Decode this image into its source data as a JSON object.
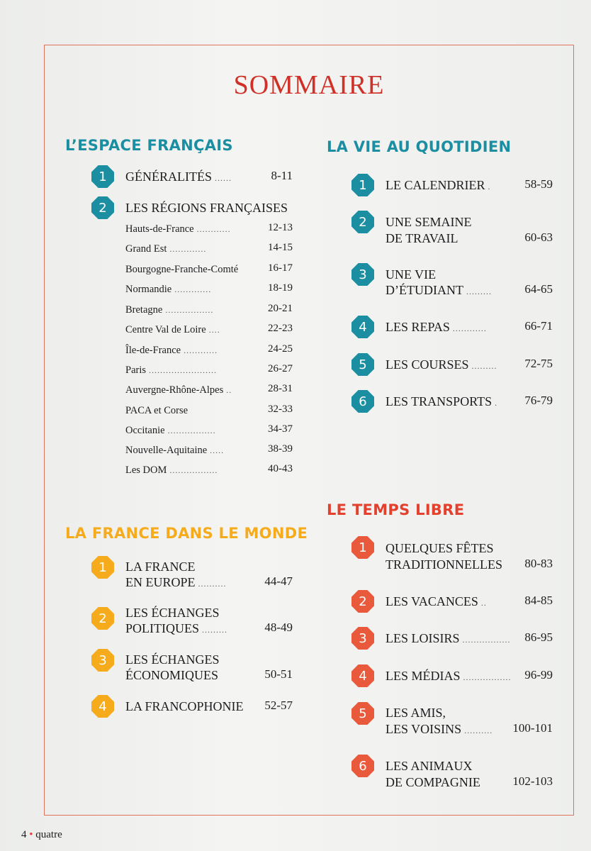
{
  "title": "SOMMAIRE",
  "left": {
    "section1": {
      "title": "L’ESPACE FRANÇAIS",
      "items": [
        {
          "num": "1",
          "label": "GÉNÉRALITÉS",
          "pages": "8-11"
        },
        {
          "num": "2",
          "label": "LES RÉGIONS FRANÇAISES",
          "pages": ""
        }
      ],
      "regions": [
        {
          "label": "Hauts-de-France",
          "pages": "12-13"
        },
        {
          "label": "Grand Est",
          "pages": "14-15"
        },
        {
          "label": "Bourgogne-Franche-Comté",
          "pages": "16-17"
        },
        {
          "label": "Normandie",
          "pages": "18-19"
        },
        {
          "label": "Bretagne",
          "pages": "20-21"
        },
        {
          "label": "Centre Val de Loire",
          "pages": "22-23"
        },
        {
          "label": "Île-de-France",
          "pages": "24-25"
        },
        {
          "label": "Paris",
          "pages": "26-27"
        },
        {
          "label": "Auvergne-Rhône-Alpes",
          "pages": "28-31"
        },
        {
          "label": "PACA et Corse",
          "pages": "32-33"
        },
        {
          "label": "Occitanie",
          "pages": "34-37"
        },
        {
          "label": "Nouvelle-Aquitaine",
          "pages": "38-39"
        },
        {
          "label": "Les DOM",
          "pages": "40-43"
        }
      ]
    },
    "section2": {
      "title": "LA FRANCE DANS LE MONDE",
      "items": [
        {
          "num": "1",
          "line1": "LA FRANCE",
          "line2": "EN EUROPE",
          "pages": "44-47"
        },
        {
          "num": "2",
          "line1": "LES ÉCHANGES",
          "line2": "POLITIQUES",
          "pages": "48-49"
        },
        {
          "num": "3",
          "line1": "LES ÉCHANGES",
          "line2": "ÉCONOMIQUES",
          "pages": "50-51"
        },
        {
          "num": "4",
          "line1": "",
          "line2": "LA FRANCOPHONIE",
          "pages": "52-57"
        }
      ]
    }
  },
  "right": {
    "section1": {
      "title": "LA VIE AU QUOTIDIEN",
      "items": [
        {
          "num": "1",
          "line1": "",
          "line2": "LE CALENDRIER",
          "pages": "58-59"
        },
        {
          "num": "2",
          "line1": "UNE SEMAINE",
          "line2": "DE TRAVAIL",
          "pages": "60-63"
        },
        {
          "num": "3",
          "line1": "UNE VIE",
          "line2": "D’ÉTUDIANT",
          "pages": "64-65"
        },
        {
          "num": "4",
          "line1": "",
          "line2": "LES REPAS",
          "pages": "66-71"
        },
        {
          "num": "5",
          "line1": "",
          "line2": "LES COURSES",
          "pages": "72-75"
        },
        {
          "num": "6",
          "line1": "",
          "line2": "LES TRANSPORTS",
          "pages": "76-79"
        }
      ]
    },
    "section2": {
      "title": "LE TEMPS LIBRE",
      "items": [
        {
          "num": "1",
          "line1": "QUELQUES FÊTES",
          "line2": "TRADITIONNELLES",
          "pages": "80-83"
        },
        {
          "num": "2",
          "line1": "",
          "line2": "LES VACANCES",
          "pages": "84-85"
        },
        {
          "num": "3",
          "line1": "",
          "line2": "LES LOISIRS",
          "pages": "86-95"
        },
        {
          "num": "4",
          "line1": "",
          "line2": "LES MÉDIAS",
          "pages": "96-99"
        },
        {
          "num": "5",
          "line1": "LES AMIS,",
          "line2": "LES VOISINS",
          "pages": "100-101"
        },
        {
          "num": "6",
          "line1": "LES ANIMAUX",
          "line2": "DE COMPAGNIE",
          "pages": "102-103"
        }
      ]
    }
  },
  "footer": {
    "page_number": "4",
    "separator": "•",
    "page_word": "quatre"
  },
  "colors": {
    "title": "#cf3129",
    "teal": "#1b8ea2",
    "orange": "#f6ab1c",
    "red": "#e85a3b",
    "frame": "#e0735e"
  }
}
